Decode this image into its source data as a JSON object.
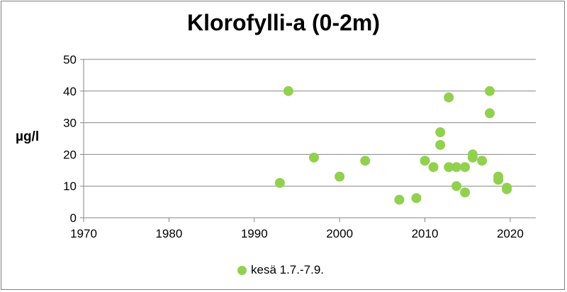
{
  "chart_data": {
    "type": "scatter",
    "title": "Klorofylli-a (0-2m)",
    "xlabel": "",
    "ylabel": "µg/l",
    "xlim": [
      1970,
      2023
    ],
    "ylim": [
      0,
      50
    ],
    "x_ticks": [
      "1970",
      "1980",
      "1990",
      "2000",
      "2010",
      "2020"
    ],
    "y_ticks": [
      "0",
      "10",
      "20",
      "30",
      "40",
      "50"
    ],
    "grid": true,
    "legend_position": "bottom",
    "series": [
      {
        "name": "kesä 1.7.-7.9.",
        "color": "#92d050",
        "points": [
          [
            1993,
            11
          ],
          [
            1994,
            40
          ],
          [
            1997,
            19
          ],
          [
            2000,
            13
          ],
          [
            2003,
            18
          ],
          [
            2007,
            5.7
          ],
          [
            2009,
            6.2
          ],
          [
            2010,
            18
          ],
          [
            2011,
            16
          ],
          [
            2011.8,
            27
          ],
          [
            2011.8,
            23
          ],
          [
            2012.8,
            16
          ],
          [
            2012.8,
            38
          ],
          [
            2013.7,
            16
          ],
          [
            2013.7,
            10
          ],
          [
            2014.7,
            16
          ],
          [
            2014.7,
            8
          ],
          [
            2015.6,
            20
          ],
          [
            2015.6,
            19
          ],
          [
            2016.7,
            18
          ],
          [
            2017.6,
            40
          ],
          [
            2017.6,
            33
          ],
          [
            2018.6,
            13
          ],
          [
            2018.6,
            12
          ],
          [
            2019.6,
            9.5
          ],
          [
            2019.6,
            9
          ]
        ]
      }
    ]
  }
}
